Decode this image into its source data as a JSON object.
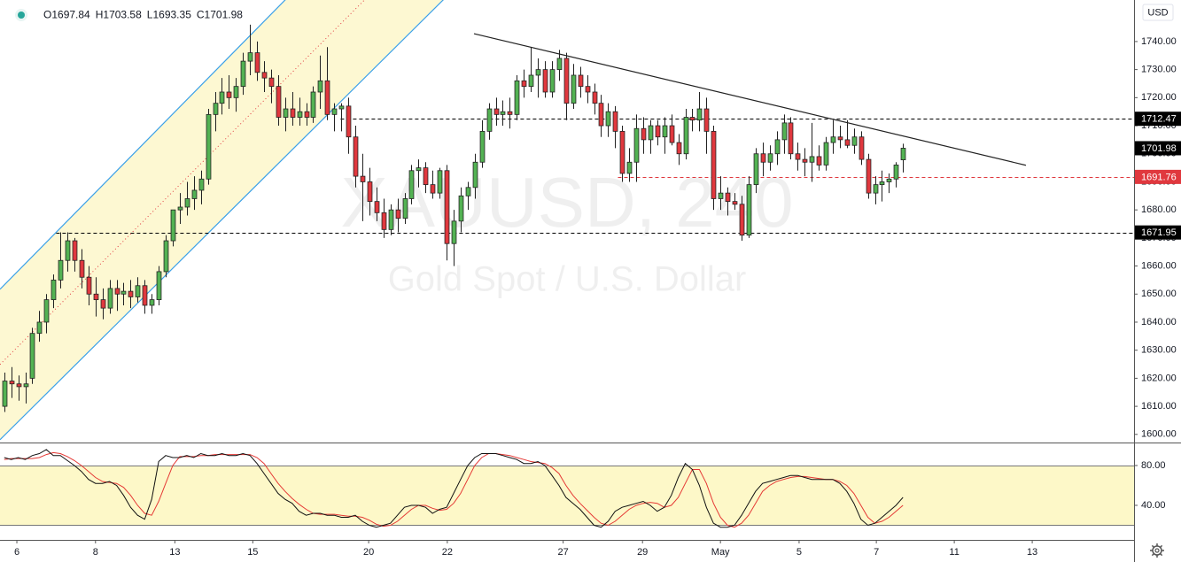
{
  "chart_data": {
    "type": "candlestick",
    "symbol_watermark": "XAUUSD, 240",
    "description_watermark": "Gold Spot / U.S. Dollar",
    "currency": "USD",
    "ohlc_labels": [
      "O",
      "H",
      "L",
      "C"
    ],
    "up_color": "#53b253",
    "down_color": "#e0383e",
    "wick_color": "#222222",
    "ohlc": [
      [
        1610,
        1622,
        1608,
        1619
      ],
      [
        1619,
        1624,
        1613,
        1618
      ],
      [
        1618,
        1621,
        1612,
        1617
      ],
      [
        1617,
        1622,
        1611,
        1618
      ],
      [
        1620,
        1638,
        1618,
        1636
      ],
      [
        1636,
        1644,
        1633,
        1640
      ],
      [
        1640,
        1650,
        1636,
        1648
      ],
      [
        1648,
        1657,
        1645,
        1655
      ],
      [
        1655,
        1672,
        1652,
        1662
      ],
      [
        1662,
        1672,
        1658,
        1669
      ],
      [
        1669,
        1670,
        1658,
        1662
      ],
      [
        1662,
        1666,
        1652,
        1656
      ],
      [
        1656,
        1660,
        1646,
        1650
      ],
      [
        1650,
        1656,
        1642,
        1648
      ],
      [
        1648,
        1652,
        1641,
        1645
      ],
      [
        1645,
        1655,
        1643,
        1652
      ],
      [
        1652,
        1655,
        1644,
        1650
      ],
      [
        1650,
        1654,
        1646,
        1651
      ],
      [
        1651,
        1655,
        1645,
        1649
      ],
      [
        1649,
        1656,
        1647,
        1653
      ],
      [
        1653,
        1655,
        1643,
        1646
      ],
      [
        1646,
        1650,
        1643,
        1648
      ],
      [
        1648,
        1660,
        1646,
        1658
      ],
      [
        1658,
        1671,
        1656,
        1669
      ],
      [
        1669,
        1680,
        1667,
        1680
      ],
      [
        1680,
        1686,
        1675,
        1681
      ],
      [
        1681,
        1690,
        1678,
        1684
      ],
      [
        1684,
        1692,
        1680,
        1687
      ],
      [
        1687,
        1694,
        1682,
        1691
      ],
      [
        1691,
        1716,
        1689,
        1714
      ],
      [
        1714,
        1722,
        1708,
        1718
      ],
      [
        1718,
        1727,
        1714,
        1722
      ],
      [
        1722,
        1728,
        1716,
        1720
      ],
      [
        1720,
        1727,
        1715,
        1724
      ],
      [
        1724,
        1736,
        1721,
        1733
      ],
      [
        1733,
        1746,
        1728,
        1736
      ],
      [
        1736,
        1740,
        1726,
        1729
      ],
      [
        1729,
        1733,
        1722,
        1727
      ],
      [
        1727,
        1730,
        1718,
        1724
      ],
      [
        1724,
        1728,
        1710,
        1713
      ],
      [
        1713,
        1720,
        1708,
        1716
      ],
      [
        1716,
        1722,
        1710,
        1713
      ],
      [
        1713,
        1720,
        1710,
        1715
      ],
      [
        1715,
        1718,
        1710,
        1713
      ],
      [
        1713,
        1724,
        1711,
        1722
      ],
      [
        1722,
        1735,
        1716,
        1726
      ],
      [
        1726,
        1738,
        1712,
        1714
      ],
      [
        1714,
        1718,
        1708,
        1716
      ],
      [
        1716,
        1718,
        1708,
        1717
      ],
      [
        1717,
        1720,
        1700,
        1706
      ],
      [
        1706,
        1710,
        1688,
        1692
      ],
      [
        1692,
        1700,
        1676,
        1690
      ],
      [
        1690,
        1695,
        1678,
        1683
      ],
      [
        1683,
        1688,
        1676,
        1679
      ],
      [
        1679,
        1684,
        1670,
        1673
      ],
      [
        1673,
        1682,
        1671,
        1680
      ],
      [
        1680,
        1684,
        1672,
        1677
      ],
      [
        1677,
        1686,
        1675,
        1684
      ],
      [
        1684,
        1696,
        1682,
        1694
      ],
      [
        1694,
        1698,
        1688,
        1695
      ],
      [
        1695,
        1697,
        1686,
        1689
      ],
      [
        1689,
        1694,
        1684,
        1686
      ],
      [
        1686,
        1695,
        1684,
        1694
      ],
      [
        1694,
        1696,
        1662,
        1668
      ],
      [
        1668,
        1680,
        1660,
        1676
      ],
      [
        1676,
        1688,
        1672,
        1685
      ],
      [
        1685,
        1690,
        1680,
        1688
      ],
      [
        1688,
        1700,
        1684,
        1697
      ],
      [
        1697,
        1712,
        1695,
        1708
      ],
      [
        1708,
        1718,
        1705,
        1716
      ],
      [
        1716,
        1720,
        1710,
        1714
      ],
      [
        1714,
        1719,
        1710,
        1715
      ],
      [
        1715,
        1720,
        1709,
        1714
      ],
      [
        1714,
        1728,
        1712,
        1726
      ],
      [
        1726,
        1730,
        1720,
        1724
      ],
      [
        1724,
        1738,
        1722,
        1728
      ],
      [
        1728,
        1734,
        1720,
        1730
      ],
      [
        1730,
        1733,
        1720,
        1722
      ],
      [
        1722,
        1733,
        1720,
        1730
      ],
      [
        1730,
        1737,
        1726,
        1734
      ],
      [
        1734,
        1736,
        1712,
        1718
      ],
      [
        1718,
        1732,
        1716,
        1728
      ],
      [
        1728,
        1731,
        1720,
        1724
      ],
      [
        1724,
        1728,
        1718,
        1722
      ],
      [
        1722,
        1725,
        1714,
        1718
      ],
      [
        1718,
        1721,
        1706,
        1710
      ],
      [
        1710,
        1718,
        1706,
        1715
      ],
      [
        1715,
        1717,
        1702,
        1708
      ],
      [
        1708,
        1710,
        1690,
        1693
      ],
      [
        1693,
        1702,
        1690,
        1697
      ],
      [
        1697,
        1714,
        1690,
        1709
      ],
      [
        1709,
        1713,
        1700,
        1705
      ],
      [
        1705,
        1712,
        1700,
        1710
      ],
      [
        1710,
        1712,
        1703,
        1706
      ],
      [
        1706,
        1713,
        1700,
        1710
      ],
      [
        1710,
        1714,
        1703,
        1704
      ],
      [
        1704,
        1707,
        1696,
        1700
      ],
      [
        1700,
        1716,
        1698,
        1713
      ],
      [
        1713,
        1716,
        1708,
        1712
      ],
      [
        1712,
        1722,
        1708,
        1716
      ],
      [
        1716,
        1720,
        1700,
        1708
      ],
      [
        1708,
        1710,
        1680,
        1684
      ],
      [
        1684,
        1692,
        1680,
        1686
      ],
      [
        1686,
        1688,
        1678,
        1683
      ],
      [
        1683,
        1686,
        1680,
        1682
      ],
      [
        1682,
        1685,
        1669,
        1671
      ],
      [
        1671,
        1692,
        1670,
        1689
      ],
      [
        1689,
        1702,
        1686,
        1700
      ],
      [
        1700,
        1704,
        1692,
        1697
      ],
      [
        1697,
        1703,
        1694,
        1700
      ],
      [
        1700,
        1708,
        1696,
        1705
      ],
      [
        1705,
        1714,
        1700,
        1711
      ],
      [
        1711,
        1713,
        1698,
        1700
      ],
      [
        1700,
        1704,
        1694,
        1698
      ],
      [
        1698,
        1702,
        1692,
        1697
      ],
      [
        1697,
        1711,
        1690,
        1699
      ],
      [
        1699,
        1703,
        1694,
        1696
      ],
      [
        1696,
        1706,
        1694,
        1704
      ],
      [
        1704,
        1712,
        1700,
        1706
      ],
      [
        1706,
        1710,
        1702,
        1705
      ],
      [
        1705,
        1712,
        1702,
        1703
      ],
      [
        1703,
        1709,
        1700,
        1706
      ],
      [
        1706,
        1708,
        1696,
        1698
      ],
      [
        1698,
        1700,
        1684,
        1686
      ],
      [
        1686,
        1692,
        1682,
        1689
      ],
      [
        1689,
        1694,
        1683,
        1690
      ],
      [
        1690,
        1693,
        1686,
        1691
      ],
      [
        1691,
        1697,
        1688,
        1696
      ],
      [
        1697.84,
        1703.58,
        1693.35,
        1701.98
      ]
    ],
    "xlim": [
      -0.6,
      160.9
    ],
    "xticks": [
      {
        "value": 1.8,
        "label": "6"
      },
      {
        "value": 13.0,
        "label": "8"
      },
      {
        "value": 24.3,
        "label": "13"
      },
      {
        "value": 35.4,
        "label": "15"
      },
      {
        "value": 51.9,
        "label": "20"
      },
      {
        "value": 63.1,
        "label": "22"
      },
      {
        "value": 79.6,
        "label": "27"
      },
      {
        "value": 90.9,
        "label": "29"
      },
      {
        "value": 102.0,
        "label": "May"
      },
      {
        "value": 113.2,
        "label": "5"
      },
      {
        "value": 124.2,
        "label": "7"
      },
      {
        "value": 135.3,
        "label": "11"
      },
      {
        "value": 146.4,
        "label": "13"
      }
    ],
    "ylim": [
      1597.1,
      1754.8
    ],
    "yticks": [
      {
        "value": 1600,
        "label": "1600.00"
      },
      {
        "value": 1610,
        "label": "1610.00"
      },
      {
        "value": 1620,
        "label": "1620.00"
      },
      {
        "value": 1630,
        "label": "1630.00"
      },
      {
        "value": 1640,
        "label": "1640.00"
      },
      {
        "value": 1650,
        "label": "1650.00"
      },
      {
        "value": 1660,
        "label": "1660.00"
      },
      {
        "value": 1670,
        "label": "1670.00"
      },
      {
        "value": 1680,
        "label": "1680.00"
      },
      {
        "value": 1690,
        "label": "1690.00"
      },
      {
        "value": 1700,
        "label": "1700.00"
      },
      {
        "value": 1710,
        "label": "1710.00"
      },
      {
        "value": 1720,
        "label": "1720.00"
      },
      {
        "value": 1730,
        "label": "1730.00"
      },
      {
        "value": 1740,
        "label": "1740.00"
      }
    ],
    "price_lines": [
      {
        "value": 1712.47,
        "from": 47.9,
        "color": "#000000"
      },
      {
        "value": 1691.76,
        "from": 87.4,
        "color": "#e0383e"
      },
      {
        "value": 1671.95,
        "from": 7.4,
        "color": "#000000"
      }
    ],
    "channel": {
      "color": "#3aa0e8",
      "fill": "#fdf8d2",
      "median_color": "#e0383e",
      "upper": {
        "x": [
          -0.6,
          40.0
        ],
        "y": [
          1651.7,
          1754.8
        ]
      },
      "lower": {
        "x": [
          -0.6,
          62.5
        ],
        "y": [
          1598.1,
          1754.8
        ]
      },
      "median": {
        "x": [
          -0.6,
          51.3
        ],
        "y": [
          1624.9,
          1754.8
        ]
      }
    },
    "trendline": {
      "x": [
        66.9,
        145.5
      ],
      "y": [
        1742.8,
        1695.9
      ],
      "color": "#222222"
    },
    "oscillator": {
      "y2lim": [
        5.3,
        103.1
      ],
      "y2ticks": [
        {
          "value": 80,
          "label": "80.00"
        },
        {
          "value": 40,
          "label": "40.00"
        }
      ],
      "band": [
        20,
        80
      ],
      "band_color": "#fdf8c8",
      "k": {
        "color": "#111111",
        "values": [
          88,
          86,
          88,
          86,
          90,
          92,
          96,
          90,
          90,
          85,
          80,
          74,
          66,
          62,
          62,
          64,
          60,
          50,
          38,
          30,
          26,
          46,
          84,
          90,
          88,
          88,
          90,
          88,
          92,
          90,
          90,
          92,
          90,
          90,
          92,
          90,
          82,
          72,
          62,
          52,
          46,
          42,
          34,
          30,
          32,
          32,
          30,
          30,
          28,
          28,
          30,
          24,
          20,
          18,
          20,
          22,
          30,
          38,
          40,
          40,
          38,
          32,
          36,
          38,
          52,
          66,
          80,
          88,
          92,
          92,
          92,
          90,
          88,
          86,
          82,
          82,
          84,
          80,
          70,
          60,
          48,
          42,
          36,
          28,
          20,
          18,
          24,
          34,
          38,
          40,
          42,
          44,
          40,
          34,
          38,
          50,
          68,
          82,
          76,
          60,
          38,
          22,
          18,
          18,
          20,
          30,
          42,
          54,
          62,
          64,
          66,
          68,
          70,
          70,
          68,
          66,
          66,
          66,
          66,
          62,
          54,
          42,
          26,
          20,
          22,
          28,
          34,
          40,
          48
        ]
      },
      "d": {
        "color": "#e53935",
        "values": [
          86,
          87,
          87,
          87,
          87,
          88,
          91,
          93,
          92,
          89,
          85,
          80,
          74,
          68,
          64,
          63,
          62,
          58,
          50,
          40,
          32,
          30,
          44,
          62,
          80,
          89,
          89,
          89,
          90,
          90,
          91,
          91,
          91,
          91,
          91,
          91,
          88,
          82,
          72,
          62,
          54,
          47,
          41,
          36,
          32,
          31,
          31,
          31,
          30,
          29,
          29,
          28,
          25,
          21,
          19,
          20,
          24,
          30,
          36,
          40,
          40,
          37,
          35,
          36,
          42,
          52,
          66,
          80,
          88,
          92,
          92,
          91,
          90,
          88,
          86,
          84,
          83,
          82,
          78,
          72,
          60,
          50,
          42,
          35,
          28,
          22,
          20,
          24,
          30,
          36,
          40,
          42,
          43,
          42,
          38,
          40,
          48,
          62,
          76,
          76,
          62,
          42,
          28,
          20,
          18,
          22,
          30,
          42,
          54,
          60,
          64,
          66,
          68,
          69,
          69,
          68,
          67,
          66,
          66,
          64,
          60,
          52,
          40,
          28,
          22,
          24,
          28,
          34,
          40
        ]
      }
    }
  }
}
